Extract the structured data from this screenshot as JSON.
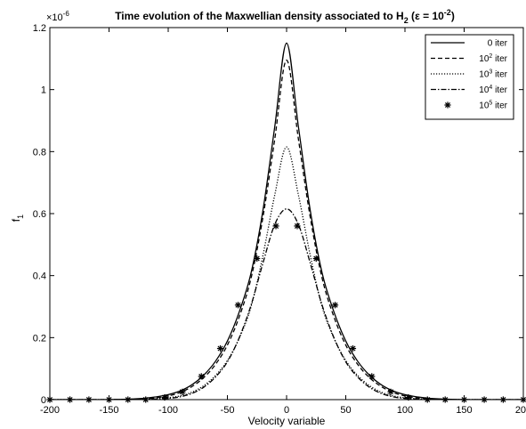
{
  "chart_data": {
    "type": "line",
    "title": {
      "main": "Time evolution of the Maxwellian density associated to H",
      "sub": "2",
      "paren_open": " (",
      "epsilon": "ε",
      "eq": " = 10",
      "exp": "-2",
      "paren_close": ")"
    },
    "xlabel": "Velocity variable",
    "ylabel": {
      "main": "f",
      "sub": "1"
    },
    "y_multiplier": {
      "base": "×10",
      "exp": "-6"
    },
    "xlim": [
      -200,
      200
    ],
    "ylim": [
      0,
      1.2
    ],
    "x_ticks": [
      -200,
      -150,
      -100,
      -50,
      0,
      50,
      100,
      150,
      200
    ],
    "y_ticks": [
      {
        "v": 0,
        "label": "0"
      },
      {
        "v": 0.2,
        "label": "0.2"
      },
      {
        "v": 0.4,
        "label": "0.4"
      },
      {
        "v": 0.6,
        "label": "0.6"
      },
      {
        "v": 0.8,
        "label": "0.8"
      },
      {
        "v": 1.0,
        "label": "1"
      },
      {
        "v": 1.2,
        "label": "1.2"
      }
    ],
    "grid": false,
    "legend_position": "top-right",
    "series": [
      {
        "name": "0 iter",
        "legend_base": "0 iter",
        "legend_exp": "",
        "legend_suffix": "",
        "style": "solid",
        "color": "#000000",
        "x": [
          -200,
          -150,
          -125,
          -110,
          -100,
          -90,
          -80,
          -70,
          -60,
          -50,
          -40,
          -30,
          -20,
          -10,
          0,
          10,
          20,
          30,
          40,
          50,
          60,
          70,
          80,
          90,
          100,
          110,
          125,
          150,
          200
        ],
        "y": [
          0,
          0,
          0.003,
          0.009,
          0.016,
          0.028,
          0.048,
          0.079,
          0.124,
          0.189,
          0.283,
          0.409,
          0.61,
          0.88,
          1.15,
          0.88,
          0.61,
          0.409,
          0.283,
          0.189,
          0.124,
          0.079,
          0.048,
          0.028,
          0.016,
          0.009,
          0.003,
          0,
          0
        ]
      },
      {
        "name": "10^2 iter",
        "legend_base": "10",
        "legend_exp": "2",
        "legend_suffix": " iter",
        "style": "dashed",
        "color": "#000000",
        "x": [
          -200,
          -150,
          -125,
          -110,
          -100,
          -90,
          -80,
          -70,
          -60,
          -50,
          -40,
          -30,
          -20,
          -10,
          0,
          10,
          20,
          30,
          40,
          50,
          60,
          70,
          80,
          90,
          100,
          110,
          125,
          150,
          200
        ],
        "y": [
          0,
          0,
          0.002,
          0.006,
          0.012,
          0.023,
          0.042,
          0.071,
          0.114,
          0.176,
          0.267,
          0.392,
          0.588,
          0.84,
          1.095,
          0.84,
          0.588,
          0.392,
          0.267,
          0.176,
          0.114,
          0.071,
          0.042,
          0.023,
          0.012,
          0.006,
          0.002,
          0,
          0
        ]
      },
      {
        "name": "10^3 iter",
        "legend_base": "10",
        "legend_exp": "3",
        "legend_suffix": " iter",
        "style": "dotted",
        "color": "#000000",
        "x": [
          -200,
          -150,
          -125,
          -110,
          -100,
          -90,
          -80,
          -70,
          -60,
          -50,
          -40,
          -30,
          -20,
          -10,
          0,
          10,
          20,
          30,
          40,
          50,
          60,
          70,
          80,
          90,
          100,
          110,
          125,
          150,
          200
        ],
        "y": [
          0,
          0,
          0.001,
          0.003,
          0.006,
          0.012,
          0.024,
          0.045,
          0.078,
          0.126,
          0.198,
          0.3,
          0.465,
          0.66,
          0.815,
          0.66,
          0.465,
          0.3,
          0.198,
          0.126,
          0.078,
          0.045,
          0.024,
          0.012,
          0.006,
          0.003,
          0.001,
          0,
          0
        ]
      },
      {
        "name": "10^4 iter",
        "legend_base": "10",
        "legend_exp": "4",
        "legend_suffix": " iter",
        "style": "dashdot",
        "color": "#000000",
        "x": [
          -200,
          -150,
          -125,
          -110,
          -100,
          -90,
          -80,
          -70,
          -60,
          -50,
          -40,
          -30,
          -20,
          -10,
          0,
          10,
          20,
          30,
          40,
          50,
          60,
          70,
          80,
          90,
          100,
          110,
          125,
          150,
          200
        ],
        "y": [
          0,
          0,
          0.001,
          0.002,
          0.004,
          0.009,
          0.02,
          0.04,
          0.073,
          0.122,
          0.2,
          0.305,
          0.44,
          0.565,
          0.615,
          0.565,
          0.44,
          0.305,
          0.2,
          0.122,
          0.073,
          0.04,
          0.02,
          0.009,
          0.004,
          0.002,
          0.001,
          0,
          0
        ]
      },
      {
        "name": "10^5 iter",
        "legend_base": "10",
        "legend_exp": "5",
        "legend_suffix": " iter",
        "style": "markers",
        "color": "#000000",
        "x": [
          -200,
          -183,
          -167,
          -150,
          -134,
          -119,
          -103,
          -88,
          -72,
          -56,
          -41,
          -25,
          -9,
          9,
          25,
          41,
          56,
          72,
          88,
          103,
          119,
          134,
          150,
          167,
          183,
          200
        ],
        "y": [
          0,
          0,
          0,
          0,
          0,
          0,
          0.007,
          0.025,
          0.075,
          0.165,
          0.305,
          0.455,
          0.56,
          0.56,
          0.455,
          0.305,
          0.165,
          0.075,
          0.025,
          0.007,
          0,
          0,
          0,
          0,
          0,
          0
        ]
      }
    ]
  }
}
